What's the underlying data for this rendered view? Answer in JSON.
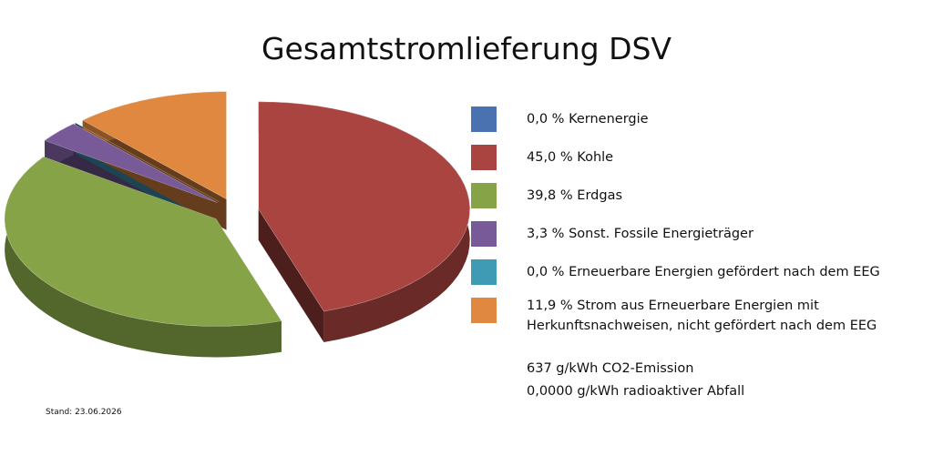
{
  "chart_data": {
    "type": "pie",
    "title": "Gesamtstromlieferung DSV",
    "categories": [
      "Kernenergie",
      "Kohle",
      "Erdgas",
      "Sonst. Fossile Energieträger",
      "Erneuerbare Energien gefördert nach dem EEG",
      "Strom aus Erneuerbare Energien mit Herkunftsnachweisen, nicht gefördert nach dem EEG"
    ],
    "values": [
      0.0,
      45.0,
      39.8,
      3.3,
      0.0,
      11.9
    ],
    "value_labels": [
      "0,0 %",
      "45,0 %",
      "39,8 %",
      "3,3 %",
      "0,0 %",
      "11,9 %"
    ],
    "colors": [
      "#4a72b0",
      "#a94441",
      "#86a447",
      "#785a99",
      "#3f9ab4",
      "#e0883f"
    ],
    "annotations": [
      "637 g/kWh CO2-Emission",
      "0,0000 g/kWh radioaktiver Abfall",
      "Stand: 23.06.2026"
    ]
  }
}
